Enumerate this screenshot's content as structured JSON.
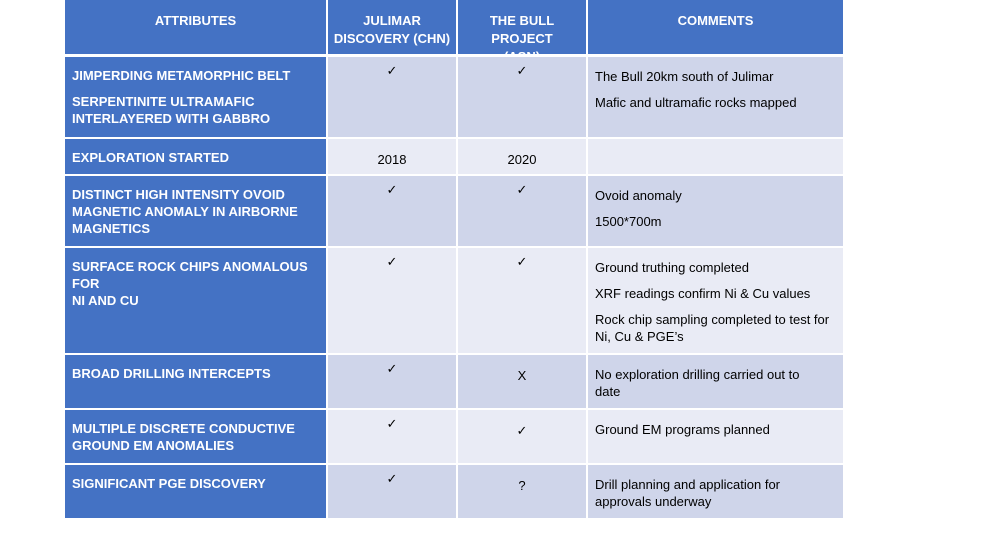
{
  "header": {
    "attributes": "ATTRIBUTES",
    "julimar": "JULIMAR\nDISCOVERY (CHN)",
    "bull": "THE BULL PROJECT\n(ASN)",
    "comments": "COMMENTS"
  },
  "rows": [
    {
      "attr": [
        "JIMPERDING METAMORPHIC BELT",
        "SERPENTINITE ULTRAMAFIC",
        "INTERLAYERED WITH GABBRO"
      ],
      "julimar": "✓",
      "bull": "✓",
      "comments": [
        "The Bull 20km south of Julimar",
        "Mafic and ultramafic rocks mapped"
      ]
    },
    {
      "attr": [
        "EXPLORATION STARTED"
      ],
      "julimar": "2018",
      "bull": "2020",
      "comments": []
    },
    {
      "attr": [
        "DISTINCT HIGH INTENSITY OVOID",
        "MAGNETIC ANOMALY IN AIRBORNE",
        "MAGNETICS"
      ],
      "julimar": "✓",
      "bull": "✓",
      "comments": [
        "Ovoid anomaly",
        "1500*700m"
      ]
    },
    {
      "attr": [
        "SURFACE ROCK CHIPS ANOMALOUS FOR",
        "NI AND CU"
      ],
      "julimar": "✓",
      "bull": "✓",
      "comments": [
        "Ground truthing completed",
        "XRF readings confirm Ni & Cu values",
        "Rock chip sampling completed to test for",
        "Ni, Cu & PGE’s"
      ]
    },
    {
      "attr": [
        "BROAD DRILLING INTERCEPTS"
      ],
      "julimar": "✓",
      "bull": "X",
      "comments": [
        "No exploration drilling carried out to",
        "date"
      ]
    },
    {
      "attr": [
        "MULTIPLE DISCRETE CONDUCTIVE",
        "GROUND EM ANOMALIES"
      ],
      "julimar": "✓",
      "bull": "✓",
      "comments": [
        "Ground EM programs planned"
      ]
    },
    {
      "attr": [
        "SIGNIFICANT PGE DISCOVERY"
      ],
      "julimar": "✓",
      "bull": "?",
      "comments": [
        "Drill planning and application for",
        "approvals underway"
      ]
    }
  ]
}
